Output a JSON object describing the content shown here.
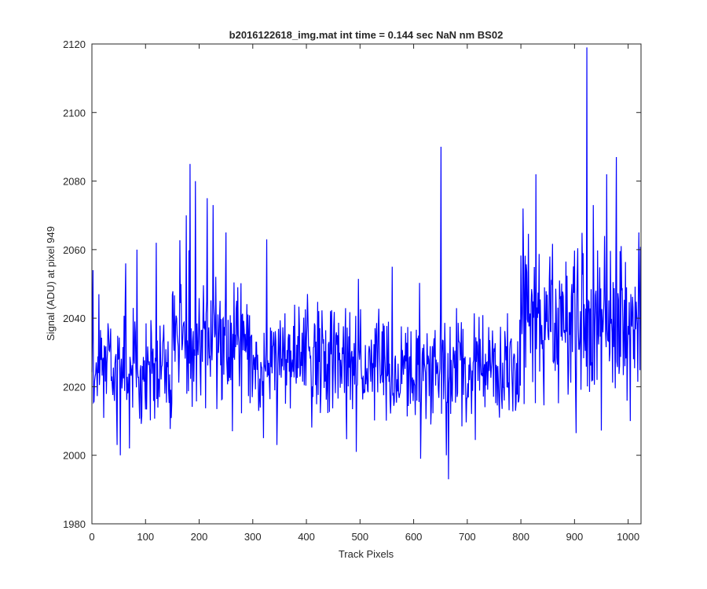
{
  "chart_data": {
    "type": "line",
    "title": "b2016122618_img.mat int time = 0.144 sec  NaN nm BS02",
    "xlabel": "Track Pixels",
    "ylabel": "Signal (ADU) at pixel 949",
    "xlim": [
      0,
      1024
    ],
    "ylim": [
      1980,
      2120
    ],
    "xticks": [
      0,
      100,
      200,
      300,
      400,
      500,
      600,
      700,
      800,
      900,
      1000
    ],
    "yticks": [
      1980,
      2000,
      2020,
      2040,
      2060,
      2080,
      2100,
      2120
    ],
    "grid": false,
    "series": [
      {
        "color": "#0000ff",
        "description": "noisy per-pixel signal (1024 samples), approximated",
        "segments": [
          {
            "x0": 0,
            "x1": 150,
            "mean": 2025,
            "amp": 12
          },
          {
            "x0": 150,
            "x1": 300,
            "mean": 2033,
            "amp": 16
          },
          {
            "x0": 300,
            "x1": 500,
            "mean": 2028,
            "amp": 12
          },
          {
            "x0": 500,
            "x1": 800,
            "mean": 2026,
            "amp": 12
          },
          {
            "x0": 800,
            "x1": 1024,
            "mean": 2038,
            "amp": 17
          }
        ],
        "peaks": [
          {
            "x": 2,
            "y": 2054
          },
          {
            "x": 13,
            "y": 2047
          },
          {
            "x": 47,
            "y": 2003
          },
          {
            "x": 53,
            "y": 2000
          },
          {
            "x": 70,
            "y": 2002
          },
          {
            "x": 84,
            "y": 2060
          },
          {
            "x": 120,
            "y": 2062
          },
          {
            "x": 176,
            "y": 2070
          },
          {
            "x": 183,
            "y": 2085
          },
          {
            "x": 193,
            "y": 2080
          },
          {
            "x": 215,
            "y": 2075
          },
          {
            "x": 250,
            "y": 2065
          },
          {
            "x": 262,
            "y": 2007
          },
          {
            "x": 320,
            "y": 2005
          },
          {
            "x": 326,
            "y": 2063
          },
          {
            "x": 345,
            "y": 2003
          },
          {
            "x": 493,
            "y": 2001
          },
          {
            "x": 560,
            "y": 2055
          },
          {
            "x": 613,
            "y": 1999
          },
          {
            "x": 651,
            "y": 2090
          },
          {
            "x": 661,
            "y": 2000
          },
          {
            "x": 665,
            "y": 1993
          },
          {
            "x": 760,
            "y": 2011
          },
          {
            "x": 804,
            "y": 2072
          },
          {
            "x": 828,
            "y": 2082
          },
          {
            "x": 923,
            "y": 2119
          },
          {
            "x": 935,
            "y": 2073
          },
          {
            "x": 960,
            "y": 2082
          },
          {
            "x": 978,
            "y": 2087
          },
          {
            "x": 1004,
            "y": 2010
          },
          {
            "x": 1020,
            "y": 2065
          }
        ]
      }
    ]
  }
}
